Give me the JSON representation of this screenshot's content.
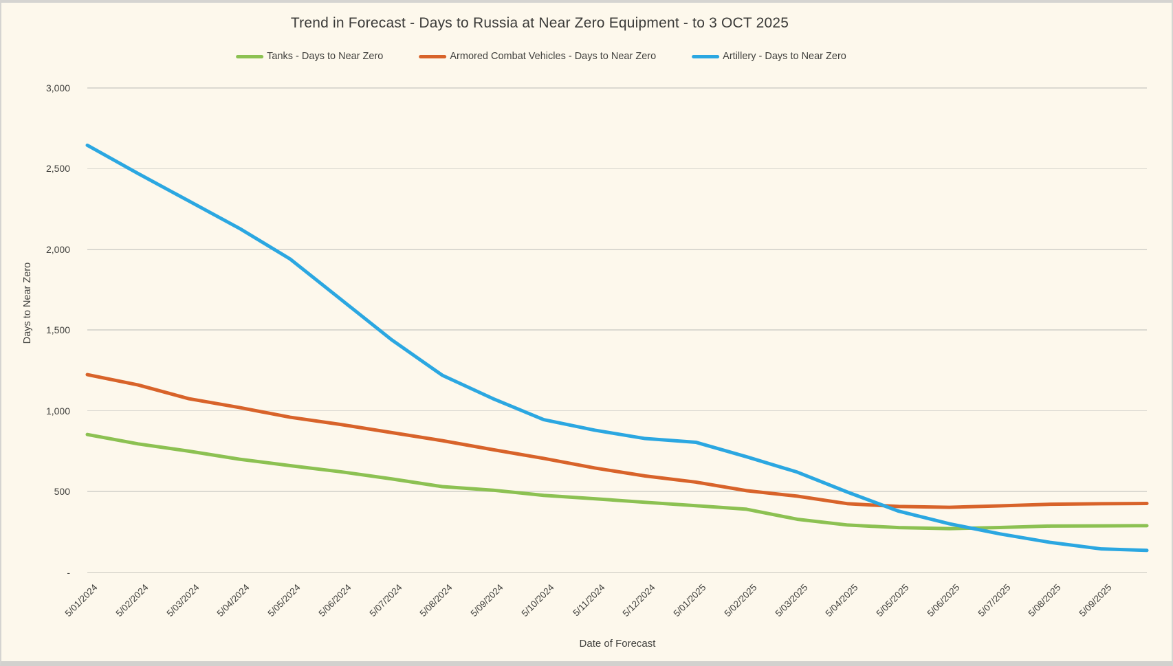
{
  "window": {
    "background_color": "#FDF8EC",
    "frame_color": "#D5D4D1"
  },
  "chart_data": {
    "type": "line",
    "title": "Trend in Forecast - Days to Russia at Near Zero Equipment - to 3 OCT 2025",
    "xlabel": "Date of Forecast",
    "ylabel": "Days to Near Zero",
    "legend_position": "top",
    "grid": true,
    "ylim": [
      0,
      3000
    ],
    "y_ticks": [
      {
        "label": "3,000",
        "value": 3000
      },
      {
        "label": "2,500",
        "value": 2500
      },
      {
        "label": "2,000",
        "value": 2000
      },
      {
        "label": "1,500",
        "value": 1500
      },
      {
        "label": "1,000",
        "value": 1000
      },
      {
        "label": "500",
        "value": 500
      },
      {
        "label": "-",
        "value": 0
      }
    ],
    "categories": [
      "5/01/2024",
      "5/02/2024",
      "5/03/2024",
      "5/04/2024",
      "5/05/2024",
      "5/06/2024",
      "5/07/2024",
      "5/08/2024",
      "5/09/2024",
      "5/10/2024",
      "5/11/2024",
      "5/12/2024",
      "5/01/2025",
      "5/02/2025",
      "5/03/2025",
      "5/04/2025",
      "5/05/2025",
      "5/06/2025",
      "5/07/2025",
      "5/08/2025",
      "5/09/2025"
    ],
    "series": [
      {
        "name": "Tanks - Days to Near Zero",
        "color": "#8CC152",
        "values": [
          853,
          795,
          750,
          700,
          660,
          622,
          578,
          530,
          508,
          476,
          455,
          433,
          412,
          390,
          328,
          292,
          276,
          270,
          277,
          286,
          287
        ],
        "end_value": 288
      },
      {
        "name": "Armored Combat Vehicles - Days to Near Zero",
        "color": "#D8632A",
        "values": [
          1224,
          1160,
          1075,
          1020,
          960,
          915,
          865,
          815,
          759,
          705,
          646,
          596,
          558,
          505,
          471,
          424,
          407,
          402,
          411,
          421,
          424
        ],
        "end_value": 426
      },
      {
        "name": "Artillery - Days to Near Zero",
        "color": "#2BA7E1",
        "values": [
          2645,
          2470,
          2300,
          2130,
          1940,
          1690,
          1440,
          1220,
          1075,
          945,
          880,
          828,
          805,
          715,
          620,
          495,
          378,
          300,
          237,
          184,
          144
        ],
        "end_value": 135
      }
    ],
    "end_note": "lines extend past the 5/09/2025 tick to 3 OCT 2025"
  }
}
